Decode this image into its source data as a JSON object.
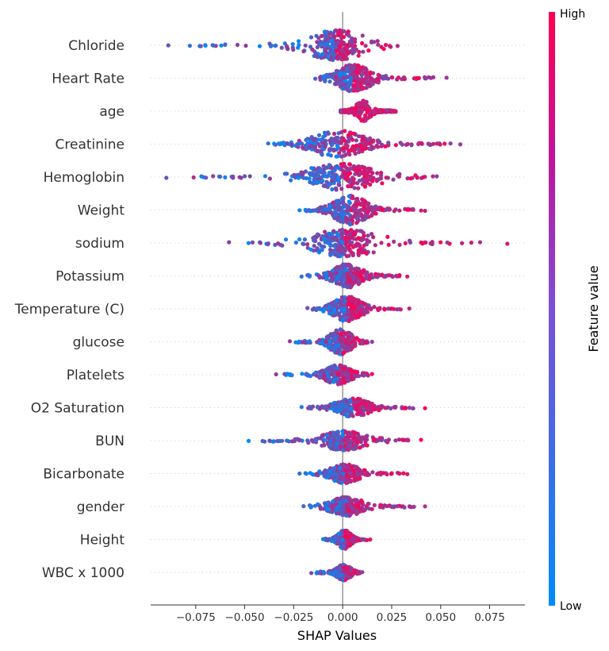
{
  "chart_data": {
    "type": "scatter",
    "subtype": "shap-beeswarm",
    "xlabel": "SHAP Values",
    "xlim": [
      -0.098,
      0.093
    ],
    "xticks": [
      -0.075,
      -0.05,
      -0.025,
      0.0,
      0.025,
      0.05,
      0.075
    ],
    "xtick_labels": [
      "−0.075",
      "−0.050",
      "−0.025",
      "0.000",
      "0.025",
      "0.050",
      "0.075"
    ],
    "colorbar": {
      "label": "Feature value",
      "high_label": "High",
      "low_label": "Low",
      "high_color": "#ff0052",
      "low_color": "#008bfb"
    },
    "features": [
      {
        "name": "Chloride",
        "min": -0.089,
        "max": 0.029,
        "q1": -0.009,
        "q3": 0.002,
        "width": 18,
        "color": "mixed",
        "outliers": [
          -0.089,
          -0.078,
          -0.073,
          -0.07,
          -0.066,
          -0.062,
          -0.06,
          0.018,
          0.022,
          0.024,
          0.028
        ]
      },
      {
        "name": "Heart Rate",
        "min": -0.014,
        "max": 0.053,
        "q1": -0.001,
        "q3": 0.012,
        "width": 16,
        "color": "mixed",
        "outliers": [
          -0.014,
          -0.01,
          0.038,
          0.042,
          0.045,
          0.053
        ]
      },
      {
        "name": "age",
        "min": -0.001,
        "max": 0.027,
        "q1": 0.001,
        "q3": 0.02,
        "width": 12,
        "color": "high",
        "outliers": [
          -0.001
        ]
      },
      {
        "name": "Creatinine",
        "min": -0.038,
        "max": 0.06,
        "q1": -0.014,
        "q3": 0.01,
        "width": 16,
        "color": "mixed",
        "outliers": [
          -0.038,
          -0.035,
          -0.03,
          -0.026,
          0.045,
          0.052,
          0.055,
          0.06
        ]
      },
      {
        "name": "Hemoglobin",
        "min": -0.09,
        "max": 0.048,
        "q1": -0.012,
        "q3": 0.01,
        "width": 16,
        "color": "mixed",
        "outliers": [
          -0.09,
          -0.071,
          -0.063,
          -0.06,
          -0.056,
          -0.05,
          0.038,
          0.041,
          0.046,
          0.048
        ]
      },
      {
        "name": "Weight",
        "min": -0.022,
        "max": 0.042,
        "q1": -0.003,
        "q3": 0.011,
        "width": 17,
        "color": "mixed",
        "outliers": [
          -0.022,
          -0.019,
          0.02,
          0.024,
          0.029,
          0.033,
          0.04,
          0.042
        ]
      },
      {
        "name": "sodium",
        "min": -0.058,
        "max": 0.084,
        "q1": -0.006,
        "q3": 0.008,
        "width": 16,
        "color": "mixed",
        "outliers": [
          -0.058,
          -0.046,
          -0.042,
          -0.038,
          0.032,
          0.04,
          0.042,
          0.084
        ]
      },
      {
        "name": "Potassium",
        "min": -0.021,
        "max": 0.033,
        "q1": -0.003,
        "q3": 0.008,
        "width": 14,
        "color": "mixed",
        "outliers": [
          -0.021,
          -0.018,
          0.025,
          0.029,
          0.033
        ]
      },
      {
        "name": "Temperature (C)",
        "min": -0.018,
        "max": 0.034,
        "q1": -0.003,
        "q3": 0.008,
        "width": 15,
        "color": "mixed",
        "outliers": [
          -0.018,
          -0.013,
          0.019,
          0.025,
          0.029,
          0.034
        ]
      },
      {
        "name": "glucose",
        "min": -0.027,
        "max": 0.015,
        "q1": -0.006,
        "q3": 0.004,
        "width": 15,
        "color": "mixed",
        "outliers": [
          -0.027,
          -0.024,
          0.012,
          0.015
        ]
      },
      {
        "name": "Platelets",
        "min": -0.034,
        "max": 0.015,
        "q1": -0.008,
        "q3": 0.003,
        "width": 11,
        "color": "mixed",
        "outliers": [
          -0.034,
          -0.028,
          0.01,
          0.015
        ]
      },
      {
        "name": "O2 Saturation",
        "min": -0.021,
        "max": 0.042,
        "q1": -0.002,
        "q3": 0.012,
        "width": 11,
        "color": "mixed",
        "outliers": [
          -0.021,
          -0.017,
          0.032,
          0.036,
          0.042
        ]
      },
      {
        "name": "BUN",
        "min": -0.048,
        "max": 0.04,
        "q1": -0.005,
        "q3": 0.006,
        "width": 11,
        "color": "mixed",
        "outliers": [
          -0.048,
          -0.022,
          -0.018,
          0.022,
          0.027,
          0.04
        ]
      },
      {
        "name": "Bicarbonate",
        "min": -0.022,
        "max": 0.033,
        "q1": -0.004,
        "q3": 0.006,
        "width": 11,
        "color": "mixed",
        "outliers": [
          -0.022,
          -0.019,
          0.025,
          0.029,
          0.031,
          0.033
        ]
      },
      {
        "name": "gender",
        "min": -0.02,
        "max": 0.042,
        "q1": -0.003,
        "q3": 0.007,
        "width": 11,
        "color": "mixed",
        "outliers": [
          -0.02,
          0.025,
          0.03,
          0.035,
          0.042
        ]
      },
      {
        "name": "Height",
        "min": -0.01,
        "max": 0.014,
        "q1": -0.002,
        "q3": 0.004,
        "width": 11,
        "color": "mixed",
        "outliers": [
          -0.01,
          0.011,
          0.014
        ]
      },
      {
        "name": "WBC x 1000",
        "min": -0.016,
        "max": 0.01,
        "q1": -0.003,
        "q3": 0.004,
        "width": 9,
        "color": "mixed",
        "outliers": [
          -0.016,
          0.008,
          0.01
        ]
      }
    ]
  }
}
